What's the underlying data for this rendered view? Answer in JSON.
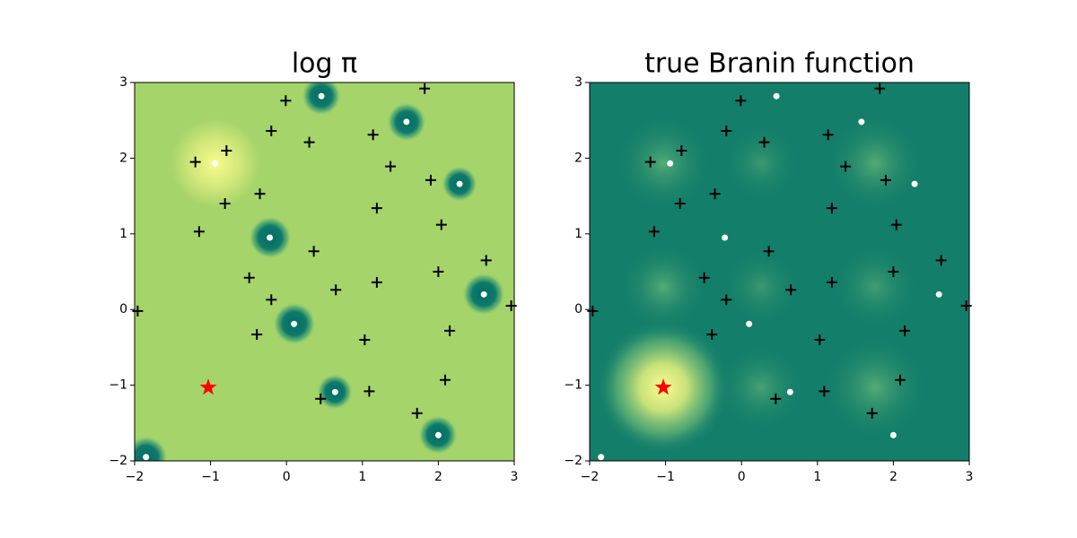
{
  "chart_data": [
    {
      "type": "scatter",
      "title": "log π",
      "xlim": [
        -2,
        3
      ],
      "ylim": [
        -2,
        3
      ],
      "xticks": [
        {
          "value": -2,
          "label": "−2"
        },
        {
          "value": -1,
          "label": "−1"
        },
        0,
        1,
        2,
        3
      ],
      "yticks": [
        {
          "value": -2,
          "label": "−2"
        },
        {
          "value": -1,
          "label": "−1"
        },
        0,
        1,
        2,
        3
      ],
      "series": [
        {
          "marker": "plus",
          "color": "#000000",
          "x": [
            -0.01,
            1.82,
            -0.79,
            -1.2,
            -0.2,
            0.3,
            1.14,
            1.37,
            1.9,
            -0.35,
            -0.81,
            1.19,
            2.04,
            -1.15,
            0.36,
            2.63,
            2.0,
            -0.49,
            1.19,
            0.65,
            -0.2,
            -1.96,
            2.96,
            2.15,
            -0.39,
            1.03,
            2.09,
            1.09,
            0.45,
            1.72
          ],
          "y": [
            2.76,
            2.92,
            2.1,
            1.95,
            2.36,
            2.21,
            2.31,
            1.89,
            1.71,
            1.53,
            1.4,
            1.34,
            1.12,
            1.03,
            0.77,
            0.65,
            0.5,
            0.42,
            0.36,
            0.26,
            0.13,
            -0.02,
            0.05,
            -0.28,
            -0.33,
            -0.4,
            -0.93,
            -1.08,
            -1.18,
            -1.37
          ]
        },
        {
          "marker": "circle",
          "color": "#ffffff",
          "x": [
            0.46,
            1.58,
            2.28,
            -0.94,
            -0.22,
            0.1,
            2.6,
            0.64,
            2.0,
            -1.85
          ],
          "y": [
            2.82,
            2.48,
            1.66,
            1.93,
            0.95,
            -0.19,
            0.2,
            -1.09,
            -1.66,
            -1.95
          ]
        },
        {
          "marker": "star",
          "color": "#ff0000",
          "x": [
            -1.03
          ],
          "y": [
            -1.03
          ]
        }
      ]
    },
    {
      "type": "scatter",
      "title": "true Branin function",
      "xlim": [
        -2,
        3
      ],
      "ylim": [
        -2,
        3
      ],
      "xticks": [
        {
          "value": -2,
          "label": "−2"
        },
        {
          "value": -1,
          "label": "−1"
        },
        0,
        1,
        2,
        3
      ],
      "yticks": [
        {
          "value": -2,
          "label": "−2"
        },
        {
          "value": -1,
          "label": "−1"
        },
        0,
        1,
        2,
        3
      ],
      "series": [
        {
          "marker": "plus",
          "color": "#000000",
          "x": [
            -0.01,
            1.82,
            -0.79,
            -1.2,
            -0.2,
            0.3,
            1.14,
            1.37,
            1.9,
            -0.35,
            -0.81,
            1.19,
            2.04,
            -1.15,
            0.36,
            2.63,
            2.0,
            -0.49,
            1.19,
            0.65,
            -0.2,
            -1.96,
            2.96,
            2.15,
            -0.39,
            1.03,
            2.09,
            1.09,
            0.45,
            1.72
          ],
          "y": [
            2.76,
            2.92,
            2.1,
            1.95,
            2.36,
            2.21,
            2.31,
            1.89,
            1.71,
            1.53,
            1.4,
            1.34,
            1.12,
            1.03,
            0.77,
            0.65,
            0.5,
            0.42,
            0.36,
            0.26,
            0.13,
            -0.02,
            0.05,
            -0.28,
            -0.33,
            -0.4,
            -0.93,
            -1.08,
            -1.18,
            -1.37
          ]
        },
        {
          "marker": "circle",
          "color": "#ffffff",
          "x": [
            0.46,
            1.58,
            2.28,
            -0.94,
            -0.22,
            0.1,
            2.6,
            0.64,
            2.0,
            -1.85
          ],
          "y": [
            2.82,
            2.48,
            1.66,
            1.93,
            0.95,
            -0.19,
            0.2,
            -1.09,
            -1.66,
            -1.95
          ]
        },
        {
          "marker": "star",
          "color": "#ff0000",
          "x": [
            -1.03
          ],
          "y": [
            -1.03
          ]
        }
      ]
    }
  ]
}
